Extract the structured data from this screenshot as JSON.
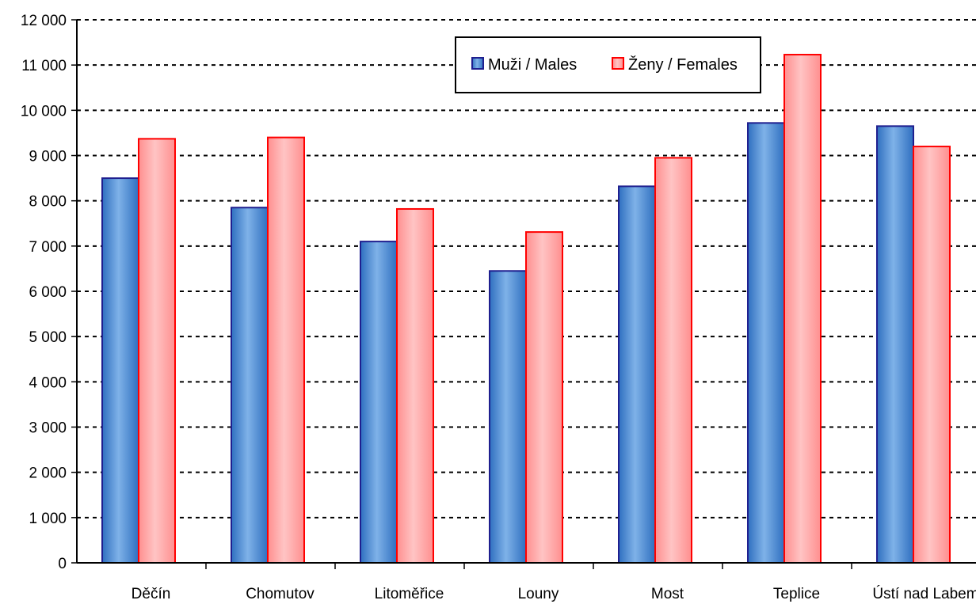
{
  "chart_data": {
    "type": "bar",
    "categories": [
      "Děčín",
      "Chomutov",
      "Litoměřice",
      "Louny",
      "Most",
      "Teplice",
      "Ústí nad Labem"
    ],
    "series": [
      {
        "name": "Muži / Males",
        "values": [
          8500,
          7850,
          7100,
          6450,
          8320,
          9720,
          9650
        ],
        "fill": "#5b9bd5",
        "stroke": "#1f1f8f"
      },
      {
        "name": "Ženy / Females",
        "values": [
          9370,
          9400,
          7820,
          7310,
          8950,
          11230,
          9200
        ],
        "fill": "#ffaaaa",
        "stroke": "#ff0000"
      }
    ],
    "ylim": [
      0,
      12000
    ],
    "yticks": [
      {
        "value": 0,
        "label": "0"
      },
      {
        "value": 1000,
        "label": "1 000"
      },
      {
        "value": 2000,
        "label": "2 000"
      },
      {
        "value": 3000,
        "label": "3 000"
      },
      {
        "value": 4000,
        "label": "4 000"
      },
      {
        "value": 5000,
        "label": "5 000"
      },
      {
        "value": 6000,
        "label": "6 000"
      },
      {
        "value": 7000,
        "label": "7 000"
      },
      {
        "value": 8000,
        "label": "8 000"
      },
      {
        "value": 9000,
        "label": "9 000"
      },
      {
        "value": 10000,
        "label": "10 000"
      },
      {
        "value": 11000,
        "label": "11 000"
      },
      {
        "value": 12000,
        "label": "12 000"
      }
    ],
    "grid": true,
    "grid_style": "dotted",
    "legend_position": "top-right"
  }
}
